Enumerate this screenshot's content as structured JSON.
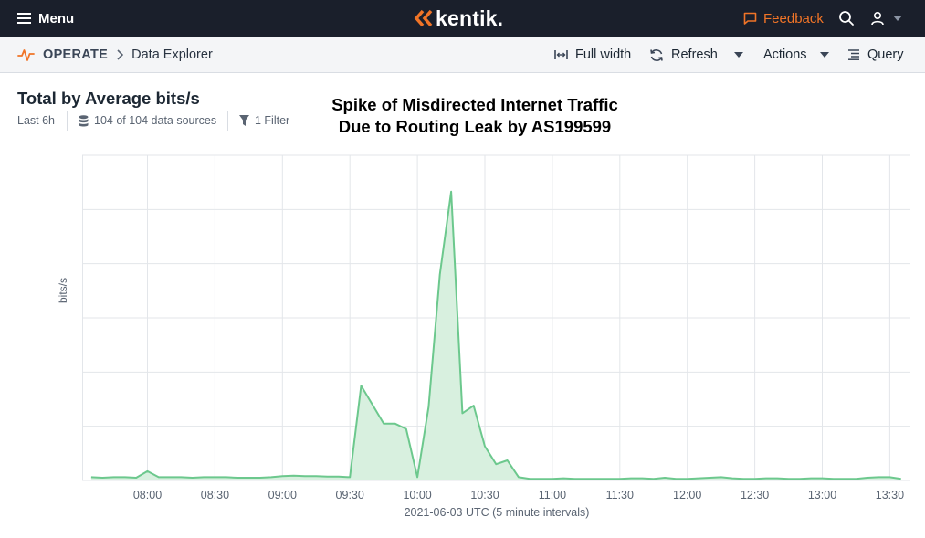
{
  "topbar": {
    "menu_label": "Menu",
    "logo_text": "kentik.",
    "feedback_label": "Feedback",
    "brand_color": "#f07427"
  },
  "subbar": {
    "section": "OPERATE",
    "page": "Data Explorer",
    "full_width_label": "Full width",
    "refresh_label": "Refresh",
    "actions_label": "Actions",
    "query_label": "Query"
  },
  "panel": {
    "title": "Total by Average bits/s",
    "time_range": "Last 6h",
    "data_sources": "104 of 104 data sources",
    "filters": "1 Filter",
    "annotation_line1": "Spike of Misdirected Internet Traffic",
    "annotation_line2": "Due to Routing Leak by AS199599"
  },
  "chart_data": {
    "type": "area",
    "ylabel": "bits/s",
    "xlabel": "2021-06-03 UTC (5 minute intervals)",
    "x_ticks": [
      "08:00",
      "08:30",
      "09:00",
      "09:30",
      "10:00",
      "10:30",
      "11:00",
      "11:30",
      "12:00",
      "12:30",
      "13:00",
      "13:30"
    ],
    "x_start": "07:35",
    "x_step_minutes": 5,
    "grid": true,
    "color": "#6cc88d",
    "fill": "#d8f0df",
    "series": [
      {
        "values": [
          0.6,
          0.5,
          0.6,
          0.6,
          0.5,
          1.7,
          0.6,
          0.6,
          0.6,
          0.5,
          0.6,
          0.6,
          0.6,
          0.5,
          0.5,
          0.5,
          0.6,
          0.8,
          0.9,
          0.8,
          0.8,
          0.7,
          0.7,
          0.6,
          17.5,
          14.0,
          10.5,
          10.5,
          9.5,
          0.6,
          13.6,
          38.0,
          53.3,
          12.4,
          13.8,
          6.3,
          3.0,
          3.7,
          0.6,
          0.3,
          0.3,
          0.3,
          0.4,
          0.3,
          0.3,
          0.3,
          0.3,
          0.3,
          0.4,
          0.4,
          0.3,
          0.5,
          0.3,
          0.3,
          0.4,
          0.5,
          0.6,
          0.4,
          0.3,
          0.3,
          0.4,
          0.4,
          0.3,
          0.3,
          0.4,
          0.4,
          0.3,
          0.3,
          0.3,
          0.5,
          0.6,
          0.6,
          0.3
        ]
      }
    ],
    "ylim": [
      0,
      60
    ]
  }
}
